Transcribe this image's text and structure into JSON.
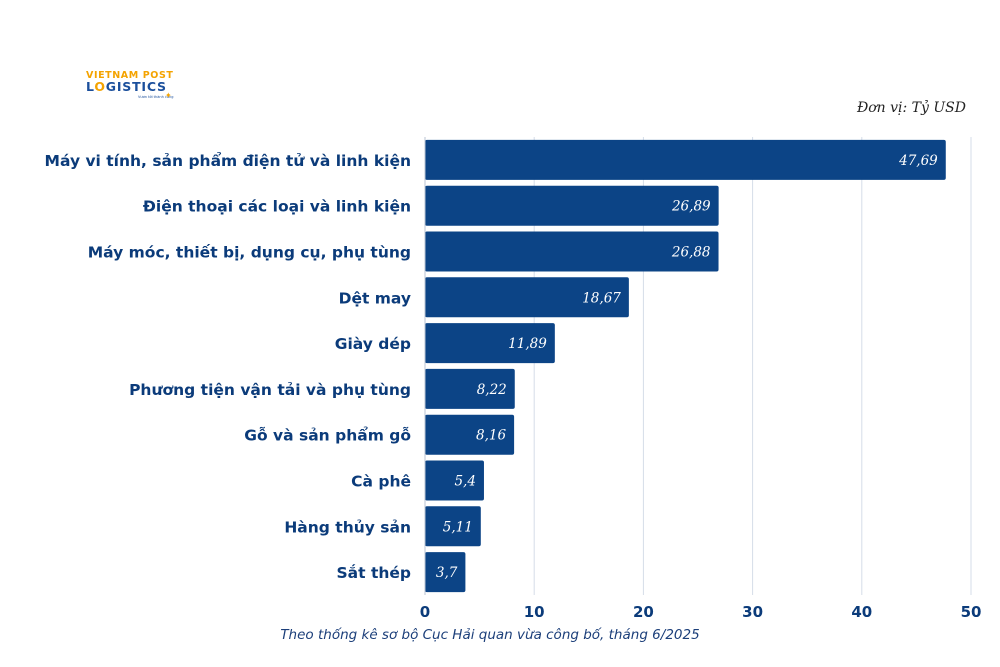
{
  "logo": {
    "line1": "VIETNAM POST",
    "line2_a": "L",
    "line2_b": "O",
    "line2_c": "GISTICS",
    "tagline": "Vươn tới thành công",
    "icon": "star-icon"
  },
  "unit_label": "Đơn vị: Tỷ USD",
  "source_note": "Theo thống kê sơ bộ Cục Hải quan vừa công bố, tháng 6/2025",
  "colors": {
    "bar": "#0c4486",
    "text": "#0b3b7a",
    "grid": "#d5dde8"
  },
  "chart_data": {
    "type": "bar",
    "orientation": "horizontal",
    "categories": [
      "Máy vi tính, sản phẩm điện tử và linh kiện",
      "Điện thoại các loại và linh kiện",
      "Máy móc, thiết bị, dụng cụ, phụ tùng",
      "Dệt may",
      "Giày dép",
      "Phương tiện vận tải và phụ tùng",
      "Gỗ và sản phẩm gỗ",
      "Cà phê",
      "Hàng thủy sản",
      "Sắt thép"
    ],
    "values": [
      47.69,
      26.89,
      26.88,
      18.67,
      11.89,
      8.22,
      8.16,
      5.4,
      5.11,
      3.7
    ],
    "value_labels": [
      "47,69",
      "26,89",
      "26,88",
      "18,67",
      "11,89",
      "8,22",
      "8,16",
      "5,4",
      "5,11",
      "3,7"
    ],
    "xlim": [
      0,
      50
    ],
    "xticks": [
      0,
      10,
      20,
      30,
      40,
      50
    ],
    "grid": true,
    "title": "",
    "xlabel": "",
    "ylabel": ""
  }
}
